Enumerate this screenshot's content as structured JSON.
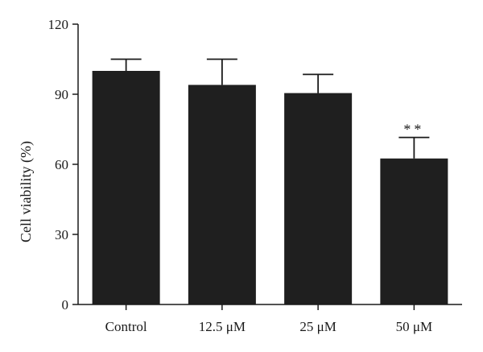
{
  "chart_data": {
    "type": "bar",
    "title": "",
    "xlabel": "",
    "ylabel": "Cell viability (%)",
    "categories": [
      "Control",
      "12.5 μM",
      "25 μM",
      "50 μM"
    ],
    "values": [
      100,
      94,
      90.5,
      62.5
    ],
    "error_upper": [
      5,
      11,
      8,
      9
    ],
    "annotations": [
      "",
      "",
      "",
      "**"
    ],
    "ylim": [
      0,
      120
    ],
    "yticks": [
      0,
      30,
      60,
      90,
      120
    ],
    "grid": false,
    "legend": "none",
    "bar_color": "#1f1f1f"
  }
}
